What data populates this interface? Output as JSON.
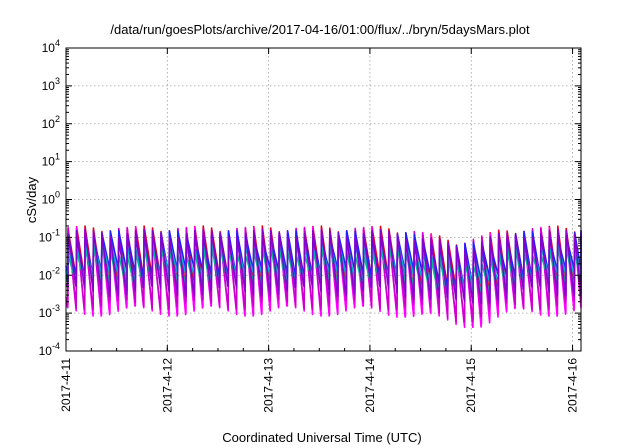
{
  "chart_data": {
    "type": "line",
    "title": "/data/run/goesPlots/archive/2017-04-16/01:00/flux/../bryn/5daysMars.plot",
    "xlabel": "Coordinated Universal Time (UTC)",
    "ylabel": "cSv/day",
    "yscale": "log",
    "ylim": [
      0.0001,
      10000
    ],
    "xlim": [
      "2017-04-11T00:00",
      "2017-04-16T02:00"
    ],
    "grid": true,
    "legend": "none",
    "x_tick_labels": [
      "2017-4-11",
      "2017-4-12",
      "2017-4-13",
      "2017-4-14",
      "2017-4-15",
      "2017-4-16"
    ],
    "y_tick_labels": [
      {
        "base": "10",
        "exp": "-4"
      },
      {
        "base": "10",
        "exp": "-3"
      },
      {
        "base": "10",
        "exp": "-2"
      },
      {
        "base": "10",
        "exp": "-1"
      },
      {
        "base": "10",
        "exp": "0"
      },
      {
        "base": "10",
        "exp": "1"
      },
      {
        "base": "10",
        "exp": "2"
      },
      {
        "base": "10",
        "exp": "3"
      },
      {
        "base": "10",
        "exp": "4"
      }
    ],
    "periodic_pattern": {
      "description_period_hours": 2,
      "first_peak_time": "2017-04-11T00:30",
      "last_time": "2017-04-16T02:00"
    },
    "series": [
      {
        "color": "#e6001a",
        "peak": 0.16,
        "trough": 0.0075
      },
      {
        "color": "#ff00ff",
        "peak": 0.15,
        "trough": 0.0012
      },
      {
        "color": "#cc00cc",
        "peak": 0.14,
        "trough": 0.0018
      },
      {
        "color": "#2020ff",
        "peak": 0.12,
        "trough": 0.012
      },
      {
        "color": "#00aacc",
        "peak": 0.07,
        "trough": 0.009
      },
      {
        "color": "#00b894",
        "peak": 0.045,
        "trough": 0.006
      },
      {
        "color": "#8800cc",
        "peak": 0.13,
        "trough": 0.004
      }
    ]
  }
}
